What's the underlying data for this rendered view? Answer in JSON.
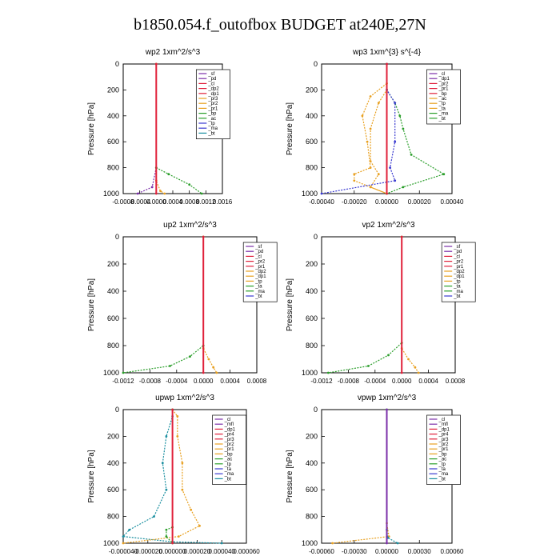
{
  "page": {
    "title": "b1850.054.f_outofbox  BUDGET at240E,27N"
  },
  "chart_data": [
    {
      "type": "line",
      "title": "wp2   1xm^2/s^3",
      "ylabel": "Pressure  [hPa]",
      "ylim": [
        1000,
        0
      ],
      "xlim": [
        -0.0008,
        0.0016
      ],
      "yticks": [
        "0",
        "200",
        "400",
        "600",
        "800",
        "1000"
      ],
      "xticks": [
        "-0.0008",
        "-0.0004",
        "0.0000",
        "0.0004",
        "0.0008",
        "0.0012",
        "0.0016"
      ],
      "legend": [
        "_sf",
        "_pd",
        "_cl",
        "_dp2",
        "_dp1",
        "_pr3",
        "_pr2",
        "_pr1",
        "_bp",
        "_ac",
        "_tp",
        "_ma",
        "_bt"
      ],
      "series": [
        {
          "color": "#7b2fa8",
          "points": [
            [
              0,
              0
            ],
            [
              0,
              800
            ],
            [
              -0.0001,
              950
            ],
            [
              -0.00045,
              1000
            ]
          ]
        },
        {
          "color": "#2a9e2a",
          "points": [
            [
              0,
              0
            ],
            [
              0,
              800
            ],
            [
              0.0003,
              850
            ],
            [
              0.0008,
              930
            ],
            [
              0.0011,
              1000
            ]
          ]
        },
        {
          "color": "#e8a020",
          "points": [
            [
              0,
              0
            ],
            [
              0,
              900
            ],
            [
              0.0001,
              980
            ],
            [
              0.0002,
              1000
            ]
          ]
        },
        {
          "color": "#e0203a",
          "points": [
            [
              0,
              0
            ],
            [
              0,
              1000
            ]
          ]
        }
      ]
    },
    {
      "type": "line",
      "title": "wp3   1xm^{3} s^{-4}",
      "ylabel": "Pressure  [hPa]",
      "ylim": [
        1000,
        0
      ],
      "xlim": [
        -0.0004,
        0.0004
      ],
      "yticks": [
        "0",
        "200",
        "400",
        "600",
        "800",
        "1000"
      ],
      "xticks": [
        "-0.00040",
        "-0.00020",
        "0.00000",
        "0.00020",
        "0.00040"
      ],
      "legend": [
        "_cl",
        "_dp1",
        "_pr2",
        "_pr1",
        "_bp",
        "_ac",
        "_tp",
        "_ta",
        "_ma",
        "_bt"
      ],
      "series": [
        {
          "color": "#e8a020",
          "points": [
            [
              0,
              0
            ],
            [
              0,
              150
            ],
            [
              -0.0001,
              250
            ],
            [
              -0.00015,
              400
            ],
            [
              -0.00012,
              600
            ],
            [
              -0.0001,
              800
            ],
            [
              -0.0002,
              850
            ],
            [
              -0.0002,
              900
            ],
            [
              0,
              1000
            ]
          ]
        },
        {
          "color": "#e8a020",
          "points": [
            [
              0,
              0
            ],
            [
              0,
              200
            ],
            [
              -5e-05,
              300
            ],
            [
              -0.0001,
              500
            ],
            [
              -0.0001,
              750
            ],
            [
              -5e-05,
              850
            ],
            [
              -0.0001,
              950
            ],
            [
              0,
              1000
            ]
          ]
        },
        {
          "color": "#2a9e2a",
          "points": [
            [
              0,
              0
            ],
            [
              0,
              200
            ],
            [
              5e-05,
              300
            ],
            [
              8e-05,
              400
            ],
            [
              0.0001,
              500
            ],
            [
              0.00015,
              700
            ],
            [
              0.00035,
              850
            ],
            [
              0.0001,
              950
            ],
            [
              0,
              1000
            ]
          ]
        },
        {
          "color": "#3a3ad0",
          "points": [
            [
              0,
              0
            ],
            [
              0,
              200
            ],
            [
              5e-05,
              300
            ],
            [
              5e-05,
              600
            ],
            [
              2e-05,
              800
            ],
            [
              5e-05,
              900
            ],
            [
              -0.0004,
              1000
            ]
          ]
        },
        {
          "color": "#e0203a",
          "points": [
            [
              0,
              0
            ],
            [
              0,
              1000
            ]
          ]
        }
      ]
    },
    {
      "type": "line",
      "title": "up2   1xm^2/s^3",
      "ylabel": "Pressure  [hPa]",
      "ylim": [
        1000,
        0
      ],
      "xlim": [
        -0.0012,
        0.0008
      ],
      "yticks": [
        "0",
        "200",
        "400",
        "600",
        "800",
        "1000"
      ],
      "xticks": [
        "-0.0012",
        "-0.0008",
        "-0.0004",
        "0.0000",
        "0.0004",
        "0.0008"
      ],
      "legend": [
        "_sf",
        "_pd",
        "_cl",
        "_pr2",
        "_pr1",
        "_dp2",
        "_dp1",
        "_tp",
        "_ta",
        "_ma",
        "_bt"
      ],
      "series": [
        {
          "color": "#2a9e2a",
          "points": [
            [
              0,
              0
            ],
            [
              0,
              800
            ],
            [
              -0.0002,
              880
            ],
            [
              -0.0005,
              950
            ],
            [
              -0.0012,
              1000
            ]
          ]
        },
        {
          "color": "#e8a020",
          "points": [
            [
              0,
              0
            ],
            [
              0,
              820
            ],
            [
              8e-05,
              900
            ],
            [
              0.00015,
              960
            ],
            [
              0.0002,
              1000
            ]
          ]
        },
        {
          "color": "#e0203a",
          "points": [
            [
              0,
              0
            ],
            [
              0,
              1000
            ]
          ]
        }
      ]
    },
    {
      "type": "line",
      "title": "vp2   1xm^2/s^3",
      "ylabel": "Pressure  [hPa]",
      "ylim": [
        1000,
        0
      ],
      "xlim": [
        -0.0012,
        0.0008
      ],
      "yticks": [
        "0",
        "200",
        "400",
        "600",
        "800",
        "1000"
      ],
      "xticks": [
        "-0.0012",
        "-0.0008",
        "-0.0004",
        "0.0000",
        "0.0004",
        "0.0008"
      ],
      "legend": [
        "_sf",
        "_pd",
        "_cl",
        "_pr2",
        "_pr1",
        "_dp2",
        "_dp1",
        "_tp",
        "_ta",
        "_ma",
        "_bt"
      ],
      "series": [
        {
          "color": "#2a9e2a",
          "points": [
            [
              0,
              0
            ],
            [
              0,
              780
            ],
            [
              -0.0002,
              870
            ],
            [
              -0.0005,
              950
            ],
            [
              -0.0011,
              1000
            ]
          ]
        },
        {
          "color": "#e8a020",
          "points": [
            [
              0,
              0
            ],
            [
              0,
              820
            ],
            [
              0.0001,
              900
            ],
            [
              0.0002,
              960
            ],
            [
              0.00025,
              1000
            ]
          ]
        },
        {
          "color": "#e0203a",
          "points": [
            [
              0,
              0
            ],
            [
              0,
              1000
            ]
          ]
        }
      ]
    },
    {
      "type": "line",
      "title": "upwp   1xm^2/s^3",
      "ylabel": "Pressure  [hPa]",
      "ylim": [
        1000,
        0
      ],
      "xlim": [
        -4e-05,
        6e-05
      ],
      "yticks": [
        "0",
        "200",
        "400",
        "600",
        "800",
        "1000"
      ],
      "xticks": [
        "-0.000040",
        "-0.000020",
        "0.000000",
        "0.000020",
        "0.000040",
        "0.000060"
      ],
      "legend": [
        "_cl",
        "_mfl",
        "_dp1",
        "_pr4",
        "_pr3",
        "_pr2",
        "_pr1",
        "_bp",
        "_ac",
        "_tp",
        "_ta",
        "_ma",
        "_bt"
      ],
      "series": [
        {
          "color": "#1a8fa0",
          "points": [
            [
              0,
              0
            ],
            [
              0,
              50
            ],
            [
              -5e-06,
              200
            ],
            [
              -8e-06,
              400
            ],
            [
              -5e-06,
              600
            ],
            [
              -1.5e-05,
              800
            ],
            [
              -3.5e-05,
              900
            ],
            [
              -4e-05,
              950
            ],
            [
              0,
              990
            ],
            [
              4e-05,
              1000
            ]
          ]
        },
        {
          "color": "#e8a020",
          "points": [
            [
              0,
              0
            ],
            [
              4e-06,
              50
            ],
            [
              4e-06,
              200
            ],
            [
              8e-06,
              400
            ],
            [
              8e-06,
              600
            ],
            [
              1.5e-05,
              750
            ],
            [
              2.2e-05,
              870
            ],
            [
              5e-06,
              950
            ],
            [
              -4e-05,
              1000
            ]
          ]
        },
        {
          "color": "#2a9e2a",
          "points": [
            [
              0,
              0
            ],
            [
              0,
              880
            ],
            [
              -5e-06,
              900
            ],
            [
              -5e-06,
              950
            ],
            [
              0,
              1000
            ]
          ]
        },
        {
          "color": "#e0203a",
          "points": [
            [
              0,
              0
            ],
            [
              0,
              1000
            ]
          ]
        }
      ]
    },
    {
      "type": "line",
      "title": "vpwp   1xm^2/s^3",
      "ylabel": "Pressure  [hPa]",
      "ylim": [
        1000,
        0
      ],
      "xlim": [
        -0.0006,
        0.0006
      ],
      "yticks": [
        "0",
        "200",
        "400",
        "600",
        "800",
        "1000"
      ],
      "xticks": [
        "-0.00060",
        "-0.00030",
        "0.00000",
        "0.00030",
        "0.00060"
      ],
      "legend": [
        "_cl",
        "_mfl",
        "_dp1",
        "_pr4",
        "_pr3",
        "_pr2",
        "_pr1",
        "_bp",
        "_ac",
        "_tp",
        "_ta",
        "_ma",
        "_bt"
      ],
      "series": [
        {
          "color": "#e8a020",
          "points": [
            [
              0,
              0
            ],
            [
              0,
              850
            ],
            [
              2e-05,
              950
            ],
            [
              -0.0005,
              1000
            ]
          ]
        },
        {
          "color": "#1a8fa0",
          "points": [
            [
              0,
              0
            ],
            [
              0,
              900
            ],
            [
              1e-05,
              960
            ],
            [
              0.0001,
              1000
            ]
          ]
        },
        {
          "color": "#7b2fa8",
          "points": [
            [
              0,
              0
            ],
            [
              0,
              1000
            ]
          ]
        }
      ]
    }
  ]
}
